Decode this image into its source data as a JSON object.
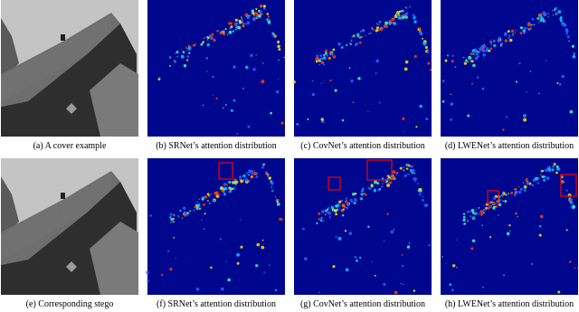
{
  "figure": {
    "panels": [
      {
        "caption": "(a) A cover example"
      },
      {
        "caption": "(b) SRNet’s attention distribution"
      },
      {
        "caption": "(c) CovNet’s attention distribution"
      },
      {
        "caption": "(d) LWENet’s attention distribution"
      },
      {
        "caption": "(e) Corresponding stego"
      },
      {
        "caption": "(f) SRNet’s attention distribution"
      },
      {
        "caption": "(g) CovNet’s attention distribution"
      },
      {
        "caption": "(h) LWENet’s attention distribution"
      }
    ]
  }
}
